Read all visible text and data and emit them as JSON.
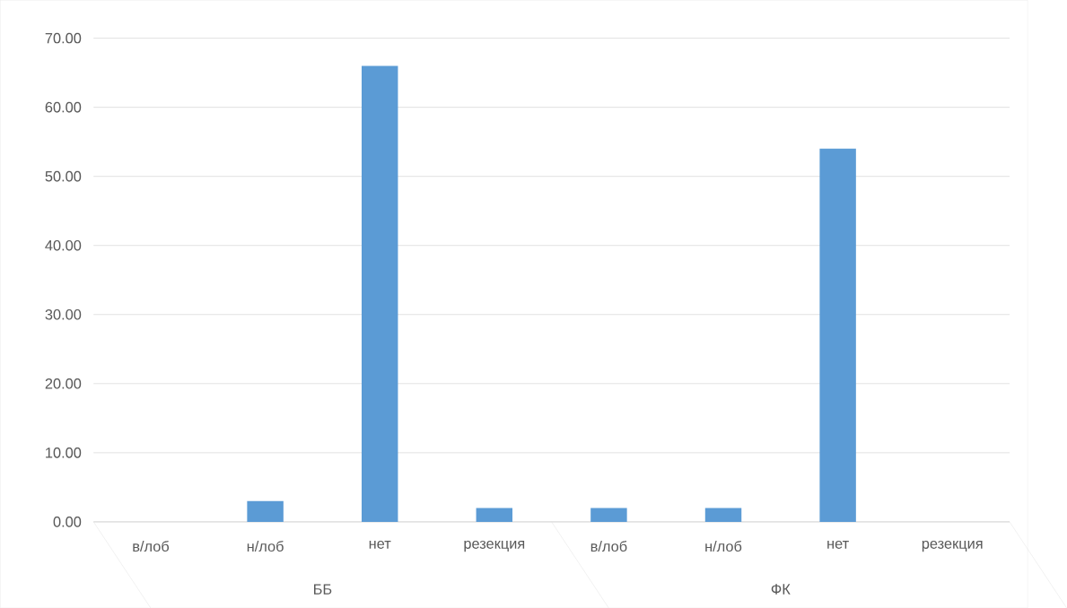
{
  "chart_data": {
    "type": "bar",
    "categories": [
      "в/лоб",
      "н/лоб",
      "нет",
      "резекция",
      "в/лоб",
      "н/лоб",
      "нет",
      "резекция"
    ],
    "values": [
      0,
      3,
      66,
      2,
      2,
      2,
      54,
      0
    ],
    "color": "#5b9bd5",
    "ylim": [
      0,
      70
    ],
    "yticks": [
      {
        "value": 0,
        "label": "0.00"
      },
      {
        "value": 10,
        "label": "10.00"
      },
      {
        "value": 20,
        "label": "20.00"
      },
      {
        "value": 30,
        "label": "30.00"
      },
      {
        "value": 40,
        "label": "40.00"
      },
      {
        "value": 50,
        "label": "50.00"
      },
      {
        "value": 60,
        "label": "60.00"
      },
      {
        "value": 70,
        "label": "70.00"
      }
    ],
    "grid": "y",
    "annotations": [
      "ББ",
      "ФК"
    ]
  }
}
